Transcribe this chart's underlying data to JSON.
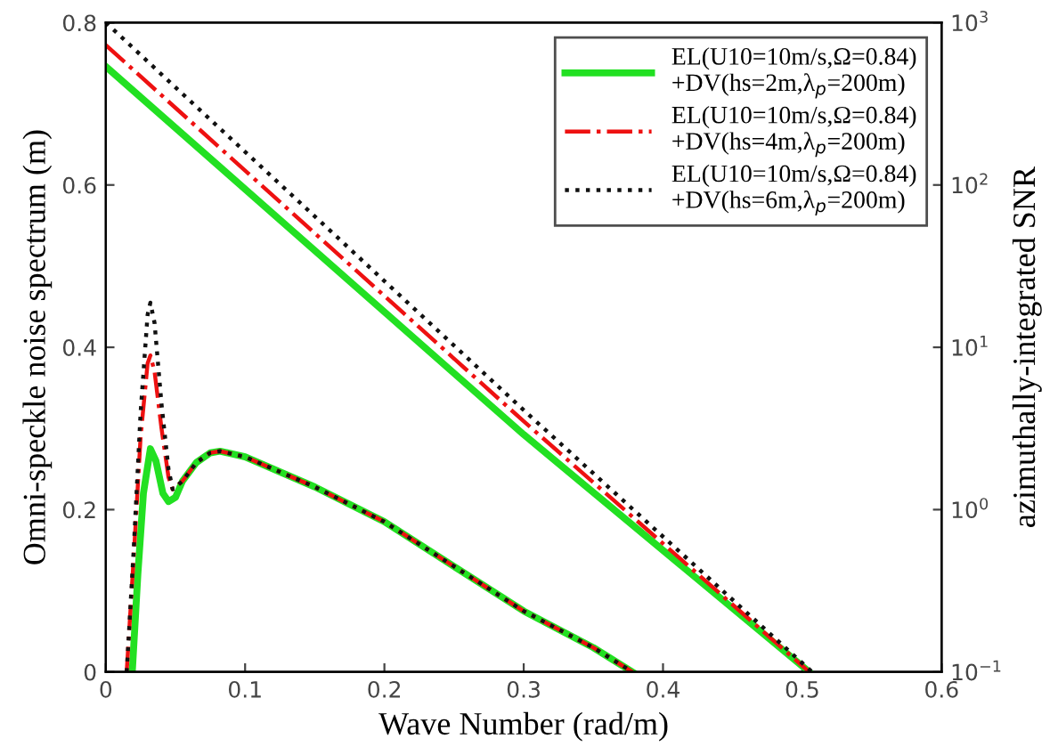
{
  "chart_data": {
    "type": "line",
    "xlabel": "Wave Number (rad/m)",
    "ylabel": "Omni-speckle noise spectrum (m)",
    "y2label": "azimuthally-integrated SNR",
    "xlim": [
      0,
      0.6
    ],
    "xticks": [
      0,
      0.1,
      0.2,
      0.3,
      0.4,
      0.5,
      0.6
    ],
    "ylim": [
      0,
      0.8
    ],
    "yticks": [
      0,
      0.2,
      0.4,
      0.6,
      0.8
    ],
    "log": "y2",
    "y2lim": [
      0.1,
      1000
    ],
    "y2ticks": [
      {
        "value": 0.1,
        "label": "10$^{−1}$"
      },
      {
        "value": 1,
        "label": "10$^{0}$"
      },
      {
        "value": 10,
        "label": "10$^{1}$"
      },
      {
        "value": 100,
        "label": "10$^{2}$"
      },
      {
        "value": 1000,
        "label": "10$^{3}$"
      }
    ],
    "grid": false,
    "legend": "top right",
    "marker": "none",
    "series": [
      {
        "name": "EL(U10=10m/s,Ω=0.84)\n+DV(hs=2m,λ$_{p}$=200m)",
        "color": "#22e022",
        "line_style": "solid",
        "x": [
          0.019,
          0.023,
          0.027,
          0.032,
          0.036,
          0.041,
          0.045,
          0.05,
          0.055,
          0.065,
          0.075,
          0.082,
          0.1,
          0.15,
          0.2,
          0.25,
          0.3,
          0.35,
          0.378
        ],
        "values": [
          0,
          0.12,
          0.22,
          0.275,
          0.26,
          0.22,
          0.21,
          0.215,
          0.235,
          0.258,
          0.27,
          0.272,
          0.265,
          0.228,
          0.185,
          0.13,
          0.075,
          0.03,
          0
        ]
      },
      {
        "name": "EL(U10=10m/s,Ω=0.84)\n+DV(hs=4m,λ$_{p}$=200m)",
        "color": "#ee1111",
        "line_style": "dashed",
        "x": [
          0.015,
          0.02,
          0.025,
          0.03,
          0.032,
          0.035,
          0.04,
          0.045,
          0.048,
          0.055,
          0.065,
          0.075,
          0.082,
          0.1,
          0.15,
          0.2,
          0.25,
          0.3,
          0.35,
          0.378
        ],
        "values": [
          0,
          0.14,
          0.29,
          0.38,
          0.39,
          0.37,
          0.3,
          0.24,
          0.225,
          0.235,
          0.258,
          0.27,
          0.272,
          0.265,
          0.228,
          0.185,
          0.13,
          0.075,
          0.03,
          0
        ]
      },
      {
        "name": "EL(U10=10m/s,Ω=0.84)\n+DV(hs=6m,λ$_{p}$=200m)",
        "color": "#111111",
        "line_style": "dotted",
        "x": [
          0.015,
          0.02,
          0.025,
          0.03,
          0.032,
          0.035,
          0.04,
          0.045,
          0.048,
          0.055,
          0.065,
          0.075,
          0.082,
          0.1,
          0.15,
          0.2,
          0.25,
          0.3,
          0.35,
          0.378
        ],
        "values": [
          0,
          0.15,
          0.32,
          0.44,
          0.455,
          0.43,
          0.33,
          0.25,
          0.225,
          0.235,
          0.258,
          0.27,
          0.272,
          0.265,
          0.228,
          0.185,
          0.13,
          0.075,
          0.03,
          0
        ]
      },
      {
        "color": "#22e022",
        "line_style": "solid",
        "axis": "y2",
        "x": [
          0,
          0.3,
          0.505
        ],
        "values": [
          537,
          2.9,
          0.1
        ]
      },
      {
        "color": "#ee1111",
        "line_style": "dashed",
        "axis": "y2",
        "x": [
          0,
          0.3,
          0.505
        ],
        "values": [
          727,
          3.5,
          0.1
        ]
      },
      {
        "color": "#111111",
        "line_style": "dotted",
        "axis": "y2",
        "x": [
          0,
          0.3,
          0.507
        ],
        "values": [
          1000,
          4.1,
          0.1
        ]
      }
    ]
  }
}
